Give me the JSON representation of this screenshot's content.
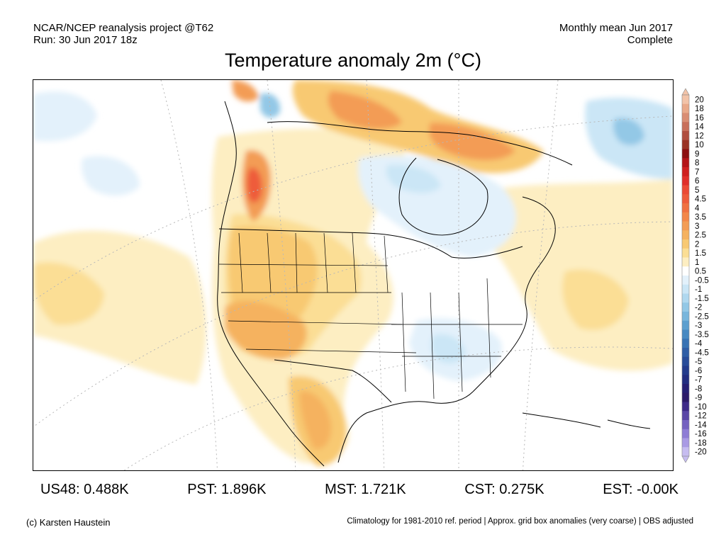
{
  "header": {
    "project": "NCAR/NCEP reanalysis project @T62",
    "run": "Run: 30 Jun 2017 18z",
    "period": "Monthly mean Jun 2017",
    "status": "Complete"
  },
  "title": "Temperature anomaly 2m (°C)",
  "colorbar": {
    "labels": [
      "20",
      "18",
      "16",
      "14",
      "12",
      "10",
      "9",
      "8",
      "7",
      "6",
      "5",
      "4.5",
      "4",
      "3.5",
      "3",
      "2.5",
      "2",
      "1.5",
      "1",
      "0.5",
      "-0.5",
      "-1",
      "-1.5",
      "-2",
      "-2.5",
      "-3",
      "-3.5",
      "-4",
      "-4.5",
      "-5",
      "-6",
      "-7",
      "-8",
      "-9",
      "-10",
      "-12",
      "-14",
      "-16",
      "-18",
      "-20"
    ],
    "colors": [
      "#f2c3a8",
      "#e9a98a",
      "#d98d73",
      "#c86f5a",
      "#b04e3f",
      "#9a3324",
      "#8c0f10",
      "#b41418",
      "#cf2020",
      "#e02f2a",
      "#eb4a35",
      "#ee5c3b",
      "#f07141",
      "#f38749",
      "#f39c55",
      "#f5b25f",
      "#f8c972",
      "#fbde95",
      "#fdeec2",
      "#ffffff",
      "#e3f1fb",
      "#cbe6f6",
      "#b0d8ef",
      "#93c8e6",
      "#78b6dc",
      "#5c9fcf",
      "#4789c2",
      "#3772b4",
      "#2f5ea6",
      "#284c99",
      "#233b8c",
      "#222d80",
      "#261f73",
      "#2c1a69",
      "#3e2a88",
      "#5a46a6",
      "#7461c0",
      "#8e7cd5",
      "#a99ae4",
      "#c6bcf0"
    ]
  },
  "stats": [
    {
      "label": "US48:",
      "value": "0.488K"
    },
    {
      "label": "PST:",
      "value": "1.896K"
    },
    {
      "label": "MST:",
      "value": "1.721K"
    },
    {
      "label": "CST:",
      "value": "0.275K"
    },
    {
      "label": "EST:",
      "value": "-0.00K"
    }
  ],
  "footer": {
    "credit": "(c) Karsten Haustein",
    "note": "Climatology for 1981-2010 ref. period | Approx. grid box anomalies (very coarse) | OBS adjusted"
  }
}
